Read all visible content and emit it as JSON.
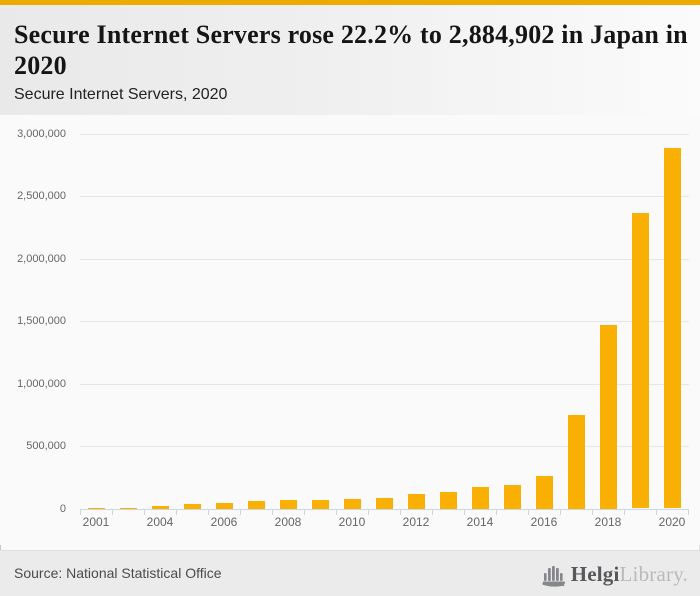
{
  "header": {
    "title": "Secure Internet Servers rose 22.2% to 2,884,902 in Japan in 2020",
    "subtitle": "Secure Internet Servers, 2020"
  },
  "chart_data": {
    "type": "bar",
    "title": "Secure Internet Servers rose 22.2% to 2,884,902 in Japan in 2020",
    "subtitle": "Secure Internet Servers, 2020",
    "categories": [
      2001,
      2003,
      2004,
      2005,
      2006,
      2007,
      2008,
      2009,
      2010,
      2011,
      2012,
      2013,
      2014,
      2015,
      2016,
      2017,
      2018,
      2019,
      2020
    ],
    "values": [
      1000,
      4000,
      21000,
      37000,
      48000,
      58000,
      69000,
      70000,
      79000,
      86000,
      114000,
      135000,
      170000,
      188000,
      263000,
      750000,
      1465000,
      2360804,
      2884902
    ],
    "xtick_labels": [
      "2001",
      "2004",
      "2006",
      "2008",
      "2010",
      "2012",
      "2014",
      "2016",
      "2018",
      "2020"
    ],
    "ylim": [
      0,
      3000000
    ],
    "ytick_step": 500000,
    "ytick_labels": [
      "0",
      "500,000",
      "1,000,000",
      "1,500,000",
      "2,000,000",
      "2,500,000",
      "3,000,000"
    ],
    "grid": true,
    "legend": "none",
    "bar_color": "#f9b003",
    "axis_color": "#ccd6eb",
    "grid_color": "#e6e6e6",
    "axis_text_color": "#666666"
  },
  "colors": {
    "accent_bar": "#edaa00",
    "bar": "#f9b003",
    "axis": "#ccd6eb",
    "grid": "#e6e6e6",
    "header_bg": "#e9e9e9",
    "footer_bg": "#ebebeb",
    "logo_dark": "#57585c",
    "logo_light": "#b9babc"
  },
  "footer": {
    "source": "Source: National Statistical Office",
    "logo_part1": "Helgi",
    "logo_part2": "Library."
  }
}
